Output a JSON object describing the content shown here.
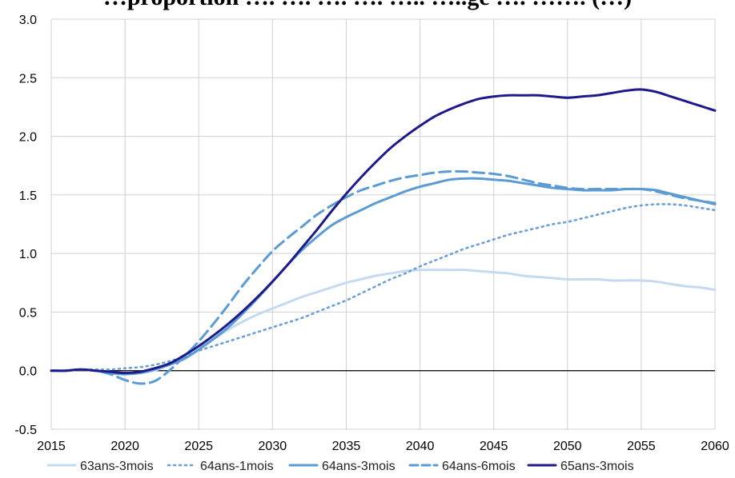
{
  "chart_data": {
    "type": "line",
    "title": "…proportion …. …. …. …. ….. …..ge …. ……. (…)",
    "xlabel": "",
    "ylabel": "",
    "xlim": [
      2015,
      2060
    ],
    "ylim": [
      -0.5,
      3.0
    ],
    "x_ticks": [
      "2015",
      "2020",
      "2025",
      "2030",
      "2035",
      "2040",
      "2045",
      "2050",
      "2055",
      "2060"
    ],
    "y_ticks": [
      "3.0",
      "2.5",
      "2.0",
      "1.5",
      "1.0",
      "0.5",
      "0.0",
      "-0.5"
    ],
    "grid": true,
    "legend_position": "bottom",
    "series": [
      {
        "name": "63ans-3mois",
        "color": "#c5d9f1",
        "dash": "solid",
        "points": [
          [
            2015,
            0
          ],
          [
            2016,
            0
          ],
          [
            2017,
            0.01
          ],
          [
            2018,
            0
          ],
          [
            2019,
            -0.02
          ],
          [
            2020,
            -0.03
          ],
          [
            2021,
            -0.02
          ],
          [
            2022,
            0
          ],
          [
            2023,
            0.05
          ],
          [
            2024,
            0.11
          ],
          [
            2025,
            0.19
          ],
          [
            2026,
            0.27
          ],
          [
            2027,
            0.35
          ],
          [
            2028,
            0.42
          ],
          [
            2029,
            0.48
          ],
          [
            2030,
            0.53
          ],
          [
            2031,
            0.58
          ],
          [
            2032,
            0.63
          ],
          [
            2033,
            0.67
          ],
          [
            2034,
            0.71
          ],
          [
            2035,
            0.75
          ],
          [
            2036,
            0.78
          ],
          [
            2037,
            0.81
          ],
          [
            2038,
            0.83
          ],
          [
            2039,
            0.85
          ],
          [
            2040,
            0.86
          ],
          [
            2041,
            0.86
          ],
          [
            2042,
            0.86
          ],
          [
            2043,
            0.86
          ],
          [
            2044,
            0.85
          ],
          [
            2045,
            0.84
          ],
          [
            2046,
            0.83
          ],
          [
            2047,
            0.81
          ],
          [
            2048,
            0.8
          ],
          [
            2049,
            0.79
          ],
          [
            2050,
            0.78
          ],
          [
            2051,
            0.78
          ],
          [
            2052,
            0.78
          ],
          [
            2053,
            0.77
          ],
          [
            2054,
            0.77
          ],
          [
            2055,
            0.77
          ],
          [
            2056,
            0.76
          ],
          [
            2057,
            0.74
          ],
          [
            2058,
            0.72
          ],
          [
            2059,
            0.71
          ],
          [
            2060,
            0.69
          ]
        ]
      },
      {
        "name": "64ans-1mois",
        "color": "#6a9fd8",
        "dash": "dotted",
        "points": [
          [
            2015,
            0
          ],
          [
            2016,
            0
          ],
          [
            2017,
            0.01
          ],
          [
            2018,
            0.01
          ],
          [
            2019,
            0.01
          ],
          [
            2020,
            0.02
          ],
          [
            2021,
            0.03
          ],
          [
            2022,
            0.05
          ],
          [
            2023,
            0.08
          ],
          [
            2024,
            0.12
          ],
          [
            2025,
            0.17
          ],
          [
            2026,
            0.21
          ],
          [
            2027,
            0.25
          ],
          [
            2028,
            0.29
          ],
          [
            2029,
            0.33
          ],
          [
            2030,
            0.37
          ],
          [
            2031,
            0.41
          ],
          [
            2032,
            0.45
          ],
          [
            2033,
            0.5
          ],
          [
            2034,
            0.55
          ],
          [
            2035,
            0.6
          ],
          [
            2036,
            0.66
          ],
          [
            2037,
            0.72
          ],
          [
            2038,
            0.78
          ],
          [
            2039,
            0.83
          ],
          [
            2040,
            0.89
          ],
          [
            2041,
            0.94
          ],
          [
            2042,
            0.99
          ],
          [
            2043,
            1.04
          ],
          [
            2044,
            1.08
          ],
          [
            2045,
            1.12
          ],
          [
            2046,
            1.16
          ],
          [
            2047,
            1.19
          ],
          [
            2048,
            1.22
          ],
          [
            2049,
            1.25
          ],
          [
            2050,
            1.27
          ],
          [
            2051,
            1.3
          ],
          [
            2052,
            1.33
          ],
          [
            2053,
            1.36
          ],
          [
            2054,
            1.39
          ],
          [
            2055,
            1.41
          ],
          [
            2056,
            1.42
          ],
          [
            2057,
            1.42
          ],
          [
            2058,
            1.41
          ],
          [
            2059,
            1.39
          ],
          [
            2060,
            1.37
          ]
        ]
      },
      {
        "name": "64ans-3mois",
        "color": "#5b9bd5",
        "dash": "solid",
        "points": [
          [
            2015,
            0
          ],
          [
            2016,
            0
          ],
          [
            2017,
            0.01
          ],
          [
            2018,
            0
          ],
          [
            2019,
            -0.02
          ],
          [
            2020,
            -0.03
          ],
          [
            2021,
            -0.02
          ],
          [
            2022,
            0.01
          ],
          [
            2023,
            0.05
          ],
          [
            2024,
            0.1
          ],
          [
            2025,
            0.18
          ],
          [
            2026,
            0.27
          ],
          [
            2027,
            0.37
          ],
          [
            2028,
            0.49
          ],
          [
            2029,
            0.62
          ],
          [
            2030,
            0.76
          ],
          [
            2031,
            0.9
          ],
          [
            2032,
            1.03
          ],
          [
            2033,
            1.14
          ],
          [
            2034,
            1.24
          ],
          [
            2035,
            1.31
          ],
          [
            2036,
            1.37
          ],
          [
            2037,
            1.43
          ],
          [
            2038,
            1.48
          ],
          [
            2039,
            1.53
          ],
          [
            2040,
            1.57
          ],
          [
            2041,
            1.6
          ],
          [
            2042,
            1.63
          ],
          [
            2043,
            1.64
          ],
          [
            2044,
            1.64
          ],
          [
            2045,
            1.63
          ],
          [
            2046,
            1.62
          ],
          [
            2047,
            1.6
          ],
          [
            2048,
            1.58
          ],
          [
            2049,
            1.56
          ],
          [
            2050,
            1.55
          ],
          [
            2051,
            1.54
          ],
          [
            2052,
            1.54
          ],
          [
            2053,
            1.54
          ],
          [
            2054,
            1.55
          ],
          [
            2055,
            1.55
          ],
          [
            2056,
            1.54
          ],
          [
            2057,
            1.51
          ],
          [
            2058,
            1.48
          ],
          [
            2059,
            1.45
          ],
          [
            2060,
            1.42
          ]
        ]
      },
      {
        "name": "64ans-6mois",
        "color": "#5b9bd5",
        "dash": "dashed",
        "points": [
          [
            2015,
            0
          ],
          [
            2016,
            0
          ],
          [
            2017,
            0.01
          ],
          [
            2018,
            0
          ],
          [
            2019,
            -0.03
          ],
          [
            2020,
            -0.08
          ],
          [
            2021,
            -0.11
          ],
          [
            2022,
            -0.09
          ],
          [
            2023,
            0
          ],
          [
            2024,
            0.12
          ],
          [
            2025,
            0.25
          ],
          [
            2026,
            0.4
          ],
          [
            2027,
            0.56
          ],
          [
            2028,
            0.73
          ],
          [
            2029,
            0.88
          ],
          [
            2030,
            1.02
          ],
          [
            2031,
            1.13
          ],
          [
            2032,
            1.23
          ],
          [
            2033,
            1.33
          ],
          [
            2034,
            1.41
          ],
          [
            2035,
            1.48
          ],
          [
            2036,
            1.54
          ],
          [
            2037,
            1.58
          ],
          [
            2038,
            1.62
          ],
          [
            2039,
            1.65
          ],
          [
            2040,
            1.67
          ],
          [
            2041,
            1.69
          ],
          [
            2042,
            1.7
          ],
          [
            2043,
            1.7
          ],
          [
            2044,
            1.69
          ],
          [
            2045,
            1.68
          ],
          [
            2046,
            1.66
          ],
          [
            2047,
            1.63
          ],
          [
            2048,
            1.6
          ],
          [
            2049,
            1.58
          ],
          [
            2050,
            1.56
          ],
          [
            2051,
            1.55
          ],
          [
            2052,
            1.55
          ],
          [
            2053,
            1.55
          ],
          [
            2054,
            1.55
          ],
          [
            2055,
            1.55
          ],
          [
            2056,
            1.53
          ],
          [
            2057,
            1.5
          ],
          [
            2058,
            1.47
          ],
          [
            2059,
            1.45
          ],
          [
            2060,
            1.43
          ]
        ]
      },
      {
        "name": "65ans-3mois",
        "color": "#1f1a8c",
        "dash": "solid",
        "points": [
          [
            2015,
            0
          ],
          [
            2016,
            0
          ],
          [
            2017,
            0.01
          ],
          [
            2018,
            0
          ],
          [
            2019,
            -0.01
          ],
          [
            2020,
            -0.02
          ],
          [
            2021,
            -0.01
          ],
          [
            2022,
            0.02
          ],
          [
            2023,
            0.06
          ],
          [
            2024,
            0.13
          ],
          [
            2025,
            0.21
          ],
          [
            2026,
            0.3
          ],
          [
            2027,
            0.4
          ],
          [
            2028,
            0.51
          ],
          [
            2029,
            0.63
          ],
          [
            2030,
            0.76
          ],
          [
            2031,
            0.9
          ],
          [
            2032,
            1.05
          ],
          [
            2033,
            1.2
          ],
          [
            2034,
            1.36
          ],
          [
            2035,
            1.51
          ],
          [
            2036,
            1.65
          ],
          [
            2037,
            1.78
          ],
          [
            2038,
            1.9
          ],
          [
            2039,
            2.0
          ],
          [
            2040,
            2.09
          ],
          [
            2041,
            2.17
          ],
          [
            2042,
            2.23
          ],
          [
            2043,
            2.28
          ],
          [
            2044,
            2.32
          ],
          [
            2045,
            2.34
          ],
          [
            2046,
            2.35
          ],
          [
            2047,
            2.35
          ],
          [
            2048,
            2.35
          ],
          [
            2049,
            2.34
          ],
          [
            2050,
            2.33
          ],
          [
            2051,
            2.34
          ],
          [
            2052,
            2.35
          ],
          [
            2053,
            2.37
          ],
          [
            2054,
            2.39
          ],
          [
            2055,
            2.4
          ],
          [
            2056,
            2.38
          ],
          [
            2057,
            2.34
          ],
          [
            2058,
            2.3
          ],
          [
            2059,
            2.26
          ],
          [
            2060,
            2.22
          ]
        ]
      }
    ]
  }
}
